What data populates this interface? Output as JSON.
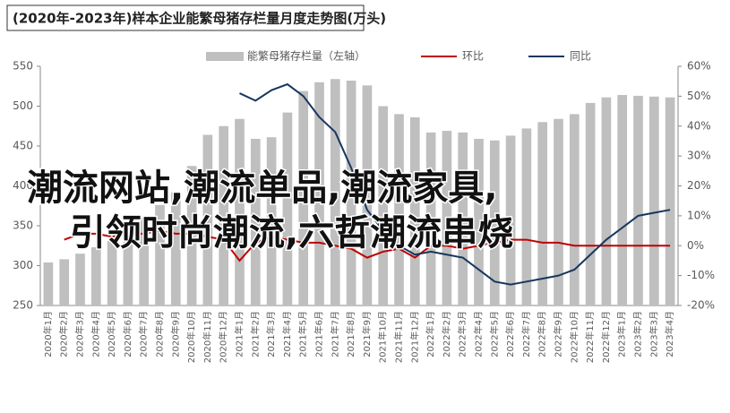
{
  "chart_data": {
    "type": "bar-line",
    "title": "(2020年-2023年)样本企业能繁母猪存栏量月度走势图(万头)",
    "annotations": [
      "潮流网站,潮流单品,潮流家具,",
      "引领时尚潮流,六哲潮流串烧"
    ],
    "categories": [
      "2020年1月",
      "2020年2月",
      "2020年3月",
      "2020年4月",
      "2020年5月",
      "2020年6月",
      "2020年7月",
      "2020年8月",
      "2020年9月",
      "2020年10月",
      "2020年11月",
      "2020年12月",
      "2021年1月",
      "2021年2月",
      "2021年3月",
      "2021年4月",
      "2021年5月",
      "2021年6月",
      "2021年7月",
      "2021年8月",
      "2021年9月",
      "2021年10月",
      "2021年11月",
      "2021年12月",
      "2022年1月",
      "2022年2月",
      "2022年3月",
      "2022年4月",
      "2022年5月",
      "2022年6月",
      "2022年7月",
      "2022年8月",
      "2022年9月",
      "2022年10月",
      "2022年11月",
      "2022年12月",
      "2023年1月",
      "2023年2月",
      "2023年3月",
      "2023年4月"
    ],
    "series": [
      {
        "name": "能繁母猪存栏量（左轴）",
        "color": "#bfbfbf",
        "kind": "bar",
        "values": [
          304,
          308,
          315,
          323,
          331,
          344,
          360,
          376,
          392,
          425,
          464,
          475,
          484,
          459,
          461,
          492,
          519,
          530,
          534,
          532,
          526,
          500,
          490,
          486,
          467,
          469,
          467,
          459,
          457,
          463,
          472,
          480,
          484,
          490,
          504,
          511,
          514,
          513,
          512,
          511
        ]
      },
      {
        "name": "环比",
        "color": "#c00000",
        "kind": "line",
        "axis": "y2",
        "values": [
          null,
          2,
          4,
          4,
          3,
          4,
          4,
          5,
          4,
          4,
          3,
          2,
          -5,
          1,
          3,
          2,
          1,
          1,
          0,
          -1,
          -4,
          -2,
          -1,
          -4,
          0,
          0,
          -1,
          0,
          1,
          2,
          2,
          1,
          1,
          0,
          0,
          0,
          0,
          0,
          0,
          0
        ]
      },
      {
        "name": "同比",
        "color": "#17375e",
        "kind": "line",
        "axis": "y2",
        "values": [
          null,
          null,
          null,
          null,
          null,
          null,
          null,
          null,
          null,
          null,
          null,
          null,
          51,
          48.5,
          52,
          54,
          50,
          43,
          38,
          26,
          12,
          5,
          0,
          -3,
          -2,
          -3,
          -4,
          -8,
          -12,
          -13,
          -12,
          -11,
          -10,
          -8,
          -3,
          2,
          6,
          10,
          11,
          12
        ]
      }
    ],
    "ylim": [
      250,
      550
    ],
    "yticks": [
      250,
      300,
      350,
      400,
      450,
      500,
      550
    ],
    "y2lim": [
      -20,
      60
    ],
    "y2ticks": [
      {
        "value": -20,
        "label": "-20%"
      },
      {
        "value": -10,
        "label": "-10%"
      },
      {
        "value": 0,
        "label": "0%"
      },
      {
        "value": 10,
        "label": "10%"
      },
      {
        "value": 20,
        "label": "20%"
      },
      {
        "value": 30,
        "label": "30%"
      },
      {
        "value": 40,
        "label": "40%"
      },
      {
        "value": 50,
        "label": "50%"
      },
      {
        "value": 60,
        "label": "60%"
      }
    ]
  }
}
